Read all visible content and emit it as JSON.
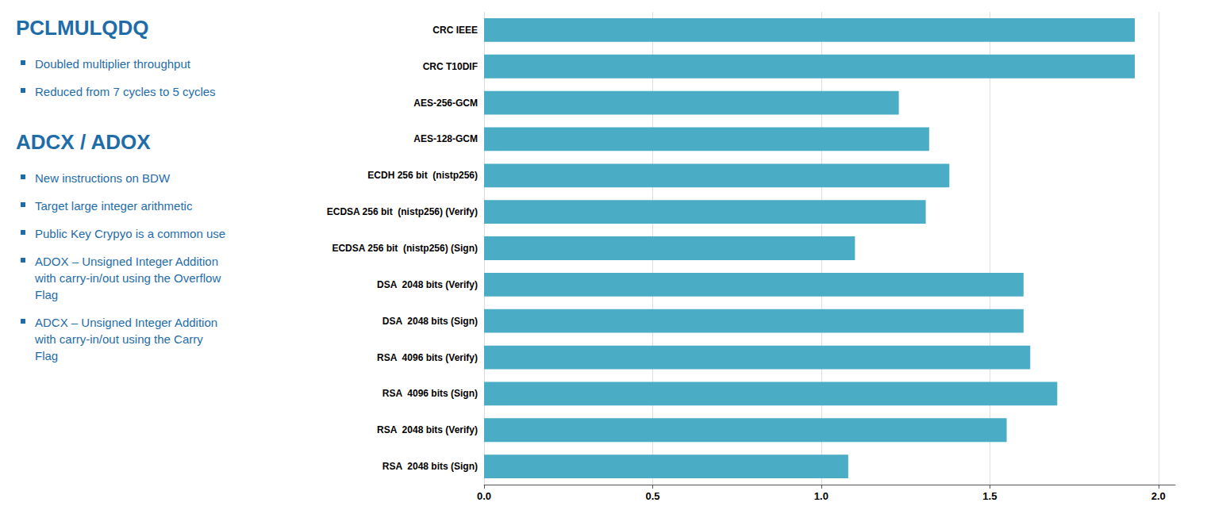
{
  "chart_data": {
    "type": "bar",
    "orientation": "horizontal",
    "categories": [
      "RSA  2048 bits (Sign)",
      "RSA  2048 bits (Verify)",
      "RSA  4096 bits (Sign)",
      "RSA  4096 bits (Verify)",
      "DSA  2048 bits (Sign)",
      "DSA  2048 bits (Verify)",
      "ECDSA 256 bit  (nistp256) (Sign)",
      "ECDSA 256 bit  (nistp256) (Verify)",
      "ECDH 256 bit  (nistp256)",
      "AES-128-GCM",
      "AES-256-GCM",
      "CRC T10DIF",
      "CRC IEEE"
    ],
    "values": [
      1.08,
      1.55,
      1.7,
      1.62,
      1.6,
      1.6,
      1.1,
      1.31,
      1.38,
      1.32,
      1.23,
      1.93,
      1.93
    ],
    "color": "#4BACC6",
    "xlim": [
      0,
      2.05
    ],
    "xticks": [
      {
        "value": 0,
        "label": "0.0"
      },
      0.5,
      {
        "value": 1,
        "label": "1.0"
      },
      1.5,
      {
        "value": 2,
        "label": "2.0"
      }
    ],
    "grid": true,
    "annotations": [
      {
        "title": "PCLMULQDQ",
        "color": "#1F6DA8",
        "items": [
          "Doubled multiplier throughput",
          "Reduced from 7 cycles to 5 cycles"
        ]
      },
      {
        "title": "ADCX / ADOX",
        "color": "#1F6DA8",
        "items": [
          "New instructions on BDW",
          "Target large integer arithmetic",
          "Public Key Crypyo is a common use",
          "ADOX – Unsigned Integer Addition\nwith carry-in/out using the Overflow\nFlag",
          "ADCX – Unsigned Integer Addition\nwith carry-in/out using the Carry\nFlag"
        ]
      }
    ]
  }
}
